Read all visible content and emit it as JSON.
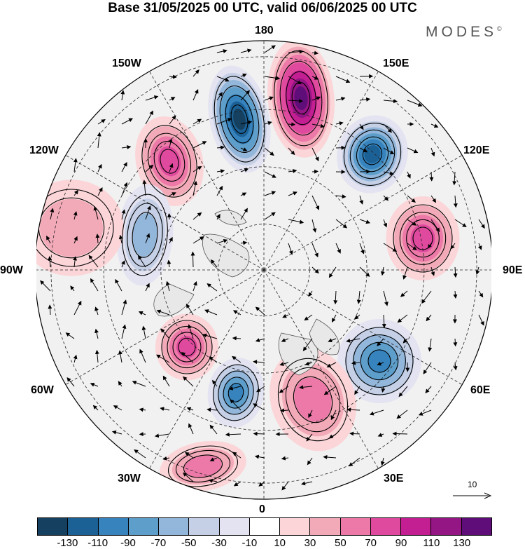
{
  "title": "Base 31/05/2025 00 UTC, valid 06/06/2025 00 UTC",
  "brand": "MODES",
  "brand_mark": "©",
  "longitude_labels": {
    "l180": "180",
    "l150e": "150E",
    "l120e": "120E",
    "l90e": "90E",
    "l60e": "60E",
    "l30e": "30E",
    "l0": "0",
    "l30w": "30W",
    "l60w": "60W",
    "l90w": "90W",
    "l120w": "120W",
    "l150w": "150W"
  },
  "reference_vector": {
    "label": "10",
    "icon": "arrow-right-icon"
  },
  "colorbar": {
    "colors": [
      "#16405f",
      "#1c6196",
      "#3683bd",
      "#5d9ecb",
      "#93b7db",
      "#c5d0e6",
      "#e3e3f1",
      "#ffffff",
      "#fbd5d8",
      "#f3aab8",
      "#ec79a8",
      "#e04a9e",
      "#c41f92",
      "#941584",
      "#5e0d79"
    ],
    "ticks": [
      "-130",
      "-110",
      "-90",
      "-70",
      "-50",
      "-30",
      "-10",
      "10",
      "30",
      "50",
      "70",
      "90",
      "110",
      "130"
    ]
  },
  "map_features": [
    {
      "name": "anomaly-positive-north-pacific",
      "value": 130
    },
    {
      "name": "anomaly-negative-north-pacific-west",
      "value": -130
    },
    {
      "name": "anomaly-negative-east-siberia",
      "value": -110
    },
    {
      "name": "anomaly-positive-alaska",
      "value": 70
    },
    {
      "name": "anomaly-positive-central-siberia",
      "value": 70
    },
    {
      "name": "anomaly-negative-central-asia",
      "value": -90
    },
    {
      "name": "anomaly-positive-scandinavia",
      "value": 50
    },
    {
      "name": "anomaly-negative-greenland",
      "value": -90
    },
    {
      "name": "anomaly-positive-north-atlantic",
      "value": 70
    },
    {
      "name": "anomaly-positive-east-atlantic",
      "value": 50
    },
    {
      "name": "anomaly-negative-canada",
      "value": -50
    },
    {
      "name": "anomaly-positive-north-america-west",
      "value": 30
    }
  ]
}
